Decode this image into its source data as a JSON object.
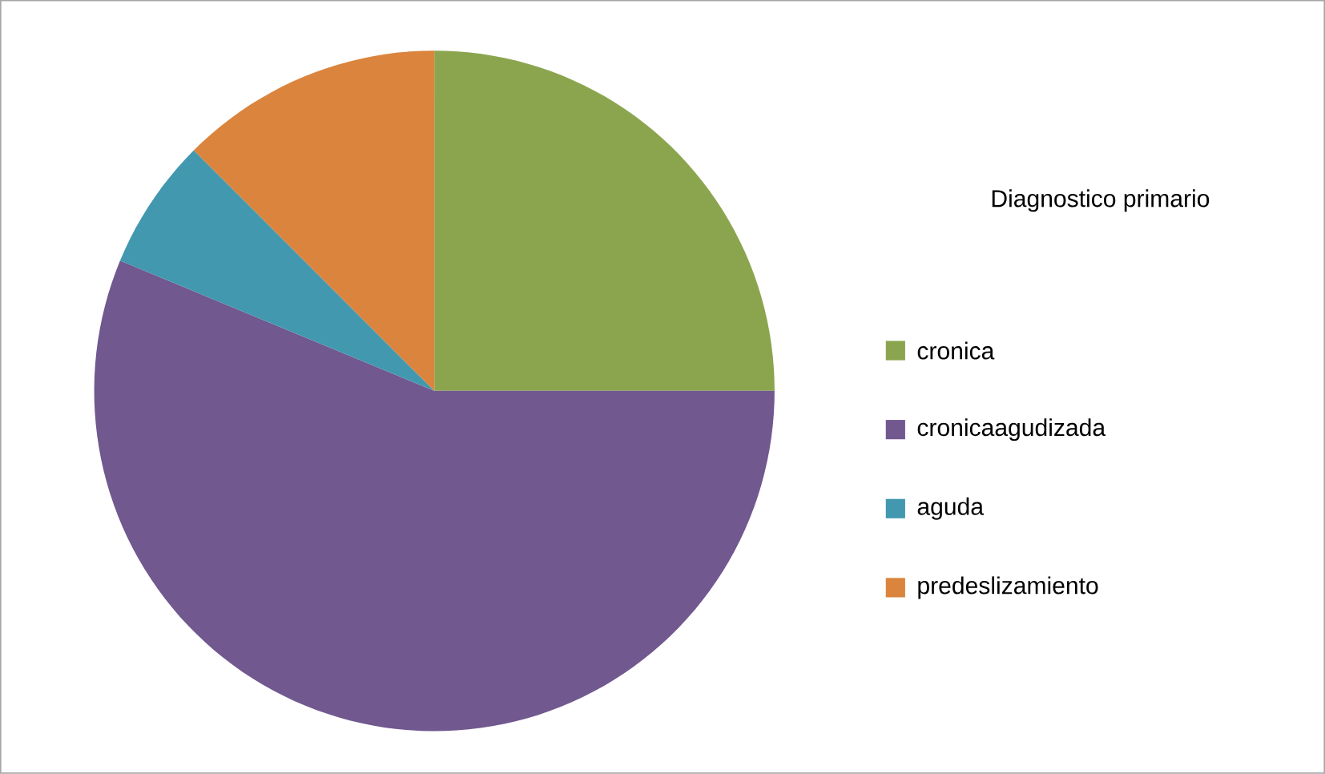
{
  "chart_data": {
    "type": "pie",
    "legend_title": "Diagnostico primario",
    "legend": "right",
    "categories": [
      "cronica",
      "cronicaagudizada",
      "aguda",
      "predeslizamiento"
    ],
    "values": [
      25,
      56.25,
      6.25,
      12.5
    ],
    "colors": [
      "#8ba54e",
      "#71588f",
      "#4198af",
      "#db843d"
    ]
  }
}
